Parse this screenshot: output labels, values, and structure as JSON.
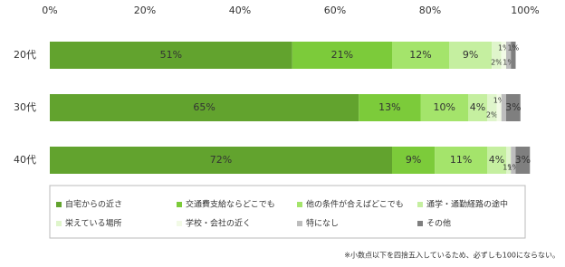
{
  "chart_data": {
    "type": "stacked-bar-horizontal",
    "categories": [
      "20代",
      "30代",
      "40代"
    ],
    "xlim": [
      0,
      100
    ],
    "xticks": [
      {
        "value": 0,
        "label": "0%"
      },
      {
        "value": 20,
        "label": "20%"
      },
      {
        "value": 40,
        "label": "40%"
      },
      {
        "value": 60,
        "label": "60%"
      },
      {
        "value": 80,
        "label": "80%"
      },
      {
        "value": 100,
        "label": "100%"
      }
    ],
    "grid": false,
    "legend": "bottom",
    "series": [
      {
        "name": "自宅からの近さ",
        "color": "#62a32e",
        "values": [
          51,
          65,
          72
        ],
        "value_labels": [
          "51%",
          "65%",
          "72%"
        ]
      },
      {
        "name": "交通費支給ならどこでも",
        "color": "#7ccb3a",
        "values": [
          21,
          13,
          9
        ],
        "value_labels": [
          "21%",
          "13%",
          "9%"
        ]
      },
      {
        "name": "他の条件が合えばどこでも",
        "color": "#a4e46b",
        "values": [
          12,
          10,
          11
        ],
        "value_labels": [
          "12%",
          "10%",
          "11%"
        ]
      },
      {
        "name": "通学・通勤経路の途中",
        "color": "#c5efa0",
        "values": [
          9,
          4,
          4
        ],
        "value_labels": [
          "9%",
          "4%",
          "4%"
        ]
      },
      {
        "name": "栄えている場所",
        "color": "#dff5cb",
        "values": [
          2,
          2,
          1
        ],
        "value_labels": [
          "2%",
          "2%",
          "1%"
        ]
      },
      {
        "name": "学校・会社の近く",
        "color": "#f2fae6",
        "values": [
          1,
          1,
          0
        ],
        "value_labels": [
          "1%",
          "1%",
          null
        ]
      },
      {
        "name": "特になし",
        "color": "#bdbdbd",
        "values": [
          1,
          1,
          1
        ],
        "value_labels": [
          "1%",
          null,
          "1%"
        ]
      },
      {
        "name": "その他",
        "color": "#7f7f7f",
        "values": [
          1,
          3,
          3
        ],
        "value_labels": [
          "1%",
          "3%",
          "3%"
        ]
      }
    ],
    "footnote": "※小数点以下を四捨五入しているため、必ずしも100にならない。"
  }
}
